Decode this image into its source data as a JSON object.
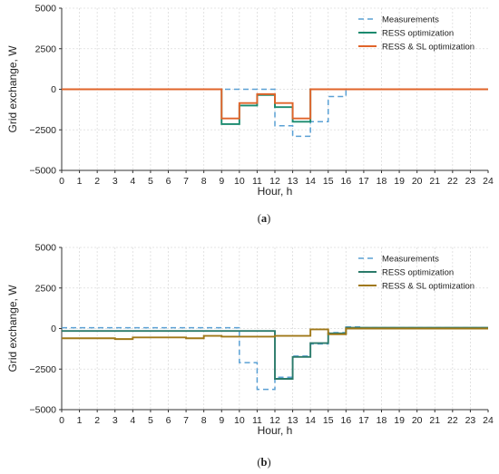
{
  "chart_data": [
    {
      "type": "line",
      "panel_label": "a",
      "xlabel": "Hour, h",
      "ylabel": "Grid exchange, W",
      "xlim": [
        0,
        24
      ],
      "ylim": [
        -5000,
        5000
      ],
      "x_ticks": [
        0,
        1,
        2,
        3,
        4,
        5,
        6,
        7,
        8,
        9,
        10,
        11,
        12,
        13,
        14,
        15,
        16,
        17,
        18,
        19,
        20,
        21,
        22,
        23,
        24
      ],
      "y_ticks": [
        5000,
        2500,
        0,
        -2500,
        -5000
      ],
      "y_tick_labels": [
        "5000",
        "2500",
        "0",
        "−2500",
        "−5000"
      ],
      "grid": true,
      "legend_position": "top-right",
      "series": [
        {
          "name": "Measurements",
          "color": "#5aa0d4",
          "dash": "dashed",
          "x": [
            0,
            1,
            2,
            3,
            4,
            5,
            6,
            7,
            8,
            9,
            10,
            11,
            12,
            13,
            14,
            15,
            16,
            17,
            18,
            19,
            20,
            21,
            22,
            23,
            24
          ],
          "values": [
            0,
            0,
            0,
            0,
            0,
            0,
            0,
            0,
            0,
            0,
            0,
            0,
            -2250,
            -2900,
            -2000,
            -450,
            0,
            0,
            0,
            0,
            0,
            0,
            0,
            0,
            0
          ]
        },
        {
          "name": "RESS optimization",
          "color": "#1a8a6e",
          "dash": "solid",
          "x": [
            0,
            1,
            2,
            3,
            4,
            5,
            6,
            7,
            8,
            9,
            10,
            11,
            12,
            13,
            14,
            15,
            16,
            17,
            18,
            19,
            20,
            21,
            22,
            23,
            24
          ],
          "values": [
            0,
            0,
            0,
            0,
            0,
            0,
            0,
            0,
            0,
            -2150,
            -1000,
            -350,
            -1100,
            -2000,
            0,
            0,
            0,
            0,
            0,
            0,
            0,
            0,
            0,
            0,
            0
          ]
        },
        {
          "name": "RESS & SL optimization",
          "color": "#e0642a",
          "dash": "solid",
          "x": [
            0,
            1,
            2,
            3,
            4,
            5,
            6,
            7,
            8,
            9,
            10,
            11,
            12,
            13,
            14,
            15,
            16,
            17,
            18,
            19,
            20,
            21,
            22,
            23,
            24
          ],
          "values": [
            0,
            0,
            0,
            0,
            0,
            0,
            0,
            0,
            0,
            -1800,
            -850,
            -300,
            -850,
            -1800,
            0,
            0,
            0,
            0,
            0,
            0,
            0,
            0,
            0,
            0,
            0
          ]
        }
      ]
    },
    {
      "type": "line",
      "panel_label": "b",
      "xlabel": "Hour, h",
      "ylabel": "Grid exchange, W",
      "xlim": [
        0,
        24
      ],
      "ylim": [
        -5000,
        5000
      ],
      "x_ticks": [
        0,
        1,
        2,
        3,
        4,
        5,
        6,
        7,
        8,
        9,
        10,
        11,
        12,
        13,
        14,
        15,
        16,
        17,
        18,
        19,
        20,
        21,
        22,
        23,
        24
      ],
      "y_ticks": [
        5000,
        2500,
        0,
        -2500,
        -5000
      ],
      "y_tick_labels": [
        "5000",
        "2500",
        "0",
        "−2500",
        "−5000"
      ],
      "grid": true,
      "legend_position": "top-right",
      "series": [
        {
          "name": "Measurements",
          "color": "#5aa0d4",
          "dash": "dashed",
          "x": [
            0,
            1,
            2,
            3,
            4,
            5,
            6,
            7,
            8,
            9,
            10,
            11,
            12,
            13,
            14,
            15,
            16,
            17,
            18,
            19,
            20,
            21,
            22,
            23,
            24
          ],
          "values": [
            50,
            50,
            50,
            50,
            50,
            50,
            50,
            50,
            50,
            50,
            -2100,
            -3750,
            -3000,
            -1700,
            -950,
            -250,
            100,
            50,
            50,
            50,
            50,
            50,
            50,
            50,
            50
          ]
        },
        {
          "name": "RESS optimization",
          "color": "#2a7a6a",
          "dash": "solid",
          "x": [
            0,
            1,
            2,
            3,
            4,
            5,
            6,
            7,
            8,
            9,
            10,
            11,
            12,
            13,
            14,
            15,
            16,
            17,
            18,
            19,
            20,
            21,
            22,
            23,
            24
          ],
          "values": [
            -150,
            -150,
            -150,
            -150,
            -150,
            -150,
            -150,
            -150,
            -150,
            -150,
            -150,
            -150,
            -3100,
            -1750,
            -900,
            -300,
            50,
            50,
            50,
            50,
            50,
            50,
            50,
            50,
            50
          ]
        },
        {
          "name": "RESS & SL optimization",
          "color": "#a07818",
          "dash": "solid",
          "x": [
            0,
            1,
            2,
            3,
            4,
            5,
            6,
            7,
            8,
            9,
            10,
            11,
            12,
            13,
            14,
            15,
            16,
            17,
            18,
            19,
            20,
            21,
            22,
            23,
            24
          ],
          "values": [
            -600,
            -600,
            -600,
            -650,
            -550,
            -550,
            -550,
            -600,
            -450,
            -500,
            -500,
            -500,
            -450,
            -450,
            -50,
            -350,
            0,
            0,
            0,
            0,
            0,
            0,
            0,
            0,
            0
          ]
        }
      ]
    }
  ]
}
